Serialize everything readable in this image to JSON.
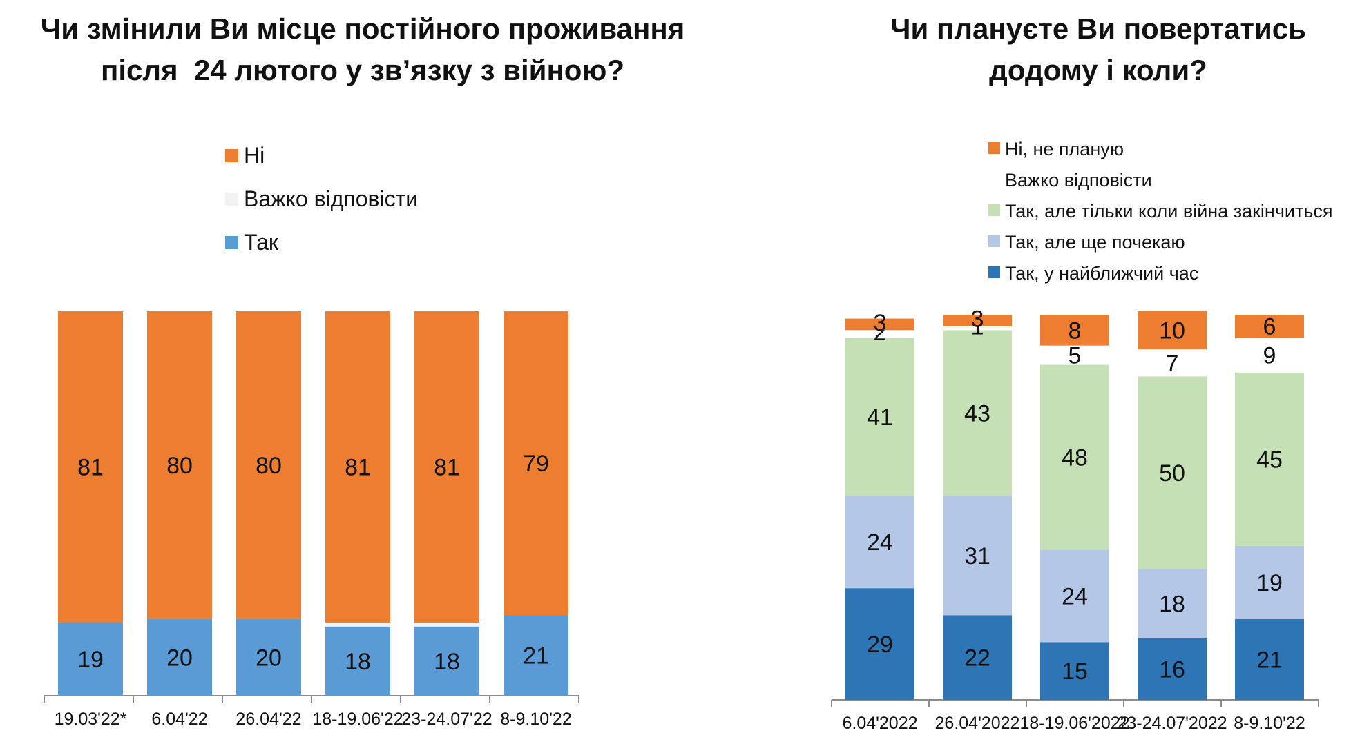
{
  "colors": {
    "orange": "#ED7D31",
    "hard": "#F2F2F2",
    "blue_light": "#5B9BD5",
    "green": "#C5E0B4",
    "lavender": "#B4C7E7",
    "blue_dark": "#2E75B6",
    "axis": "#8C8C8C"
  },
  "titles": {
    "left": [
      "Чи змінили Ви місце постійного проживання",
      "після  24 лютого у зв’язку з війною?"
    ],
    "right": [
      "Чи плануєте Ви повертатись",
      "додому і коли?"
    ]
  },
  "chart_data": [
    {
      "type": "bar",
      "stacked": true,
      "title": "Чи змінили Ви місце постійного проживання після  24 лютого у зв’язку з війною?",
      "categories": [
        "19.03'22*",
        "6.04'22",
        "26.04'22",
        "18-19.06'22",
        "23-24.07'22",
        "8-9.10'22"
      ],
      "legend": [
        "Ні",
        "Важко відповісти",
        "Так"
      ],
      "series": [
        {
          "name": "Так",
          "color": "#5B9BD5",
          "values": [
            19,
            20,
            20,
            18,
            18,
            21
          ],
          "show_labels": true
        },
        {
          "name": "Важко відповісти",
          "color": "#F2F2F2",
          "values": [
            0,
            0,
            0,
            1,
            1,
            0
          ],
          "show_labels": false
        },
        {
          "name": "Ні",
          "color": "#ED7D31",
          "values": [
            81,
            80,
            80,
            81,
            81,
            79
          ],
          "show_labels": true
        }
      ],
      "ylim": [
        0,
        100
      ],
      "grid": false,
      "legend_position": "top"
    },
    {
      "type": "bar",
      "stacked": true,
      "title": "Чи плануєте Ви повертатись додому і коли?",
      "categories": [
        "6.04'2022",
        "26.04'2022",
        "18-19.06'2022",
        "23-24.07'2022",
        "8-9.10'22"
      ],
      "legend": [
        "Ні, не планую",
        "Важко відповісти",
        "Так, але тільки коли війна закінчиться",
        "Так, але ще почекаю",
        "Так, у найближчий час"
      ],
      "series": [
        {
          "name": "Так, у найближчий час",
          "color": "#2E75B6",
          "values": [
            29,
            22,
            15,
            16,
            21
          ]
        },
        {
          "name": "Так, але ще почекаю",
          "color": "#B4C7E7",
          "values": [
            24,
            31,
            24,
            18,
            19
          ]
        },
        {
          "name": "Так, але тільки коли війна закінчиться",
          "color": "#C5E0B4",
          "values": [
            41,
            43,
            48,
            50,
            45
          ]
        },
        {
          "name": "Важко відповісти",
          "color": "#FFFFFF",
          "values": [
            2,
            1,
            5,
            7,
            9
          ]
        },
        {
          "name": "Ні, не планую",
          "color": "#ED7D31",
          "values": [
            3,
            3,
            8,
            10,
            6
          ]
        }
      ],
      "ylim": [
        0,
        100
      ],
      "grid": false,
      "legend_position": "top"
    }
  ]
}
